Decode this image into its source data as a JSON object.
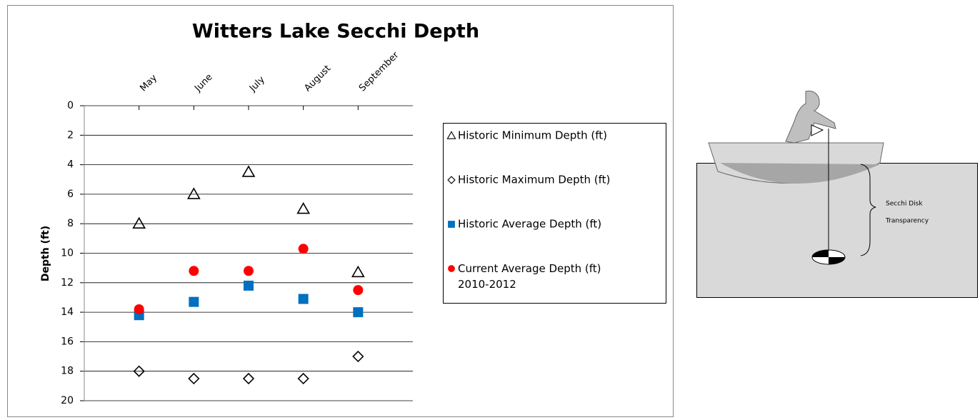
{
  "chart_data": {
    "type": "scatter",
    "title": "Witters Lake Secchi Depth",
    "y_label": "Depth (ft)",
    "categories": [
      "May",
      "June",
      "July",
      "August",
      "September"
    ],
    "ylim": [
      0,
      20
    ],
    "yticks": [
      0,
      2,
      4,
      6,
      8,
      10,
      12,
      14,
      16,
      18,
      20
    ],
    "y_inverted": true,
    "grid": true,
    "legend": "right",
    "series": [
      {
        "name": "Historic Minimum Depth (ft)",
        "marker": "triangle",
        "color": "#000000",
        "values": [
          8,
          6,
          4.5,
          7,
          11.3
        ]
      },
      {
        "name": "Historic Maximum Depth (ft)",
        "marker": "diamond",
        "color": "#000000",
        "values": [
          18,
          18.5,
          18.5,
          18.5,
          17
        ]
      },
      {
        "name": "Historic Average Depth (ft)",
        "marker": "square",
        "color": "#0070c0",
        "values": [
          14.2,
          13.3,
          12.2,
          13.1,
          14.0
        ]
      },
      {
        "name": "Current Average Depth (ft) 2010-2012",
        "marker": "circle",
        "color": "#ff0000",
        "values": [
          13.8,
          11.2,
          11.2,
          9.7,
          12.5
        ]
      }
    ]
  },
  "illustration": {
    "lines": [
      "Secchi Disk",
      "Transparency"
    ]
  }
}
